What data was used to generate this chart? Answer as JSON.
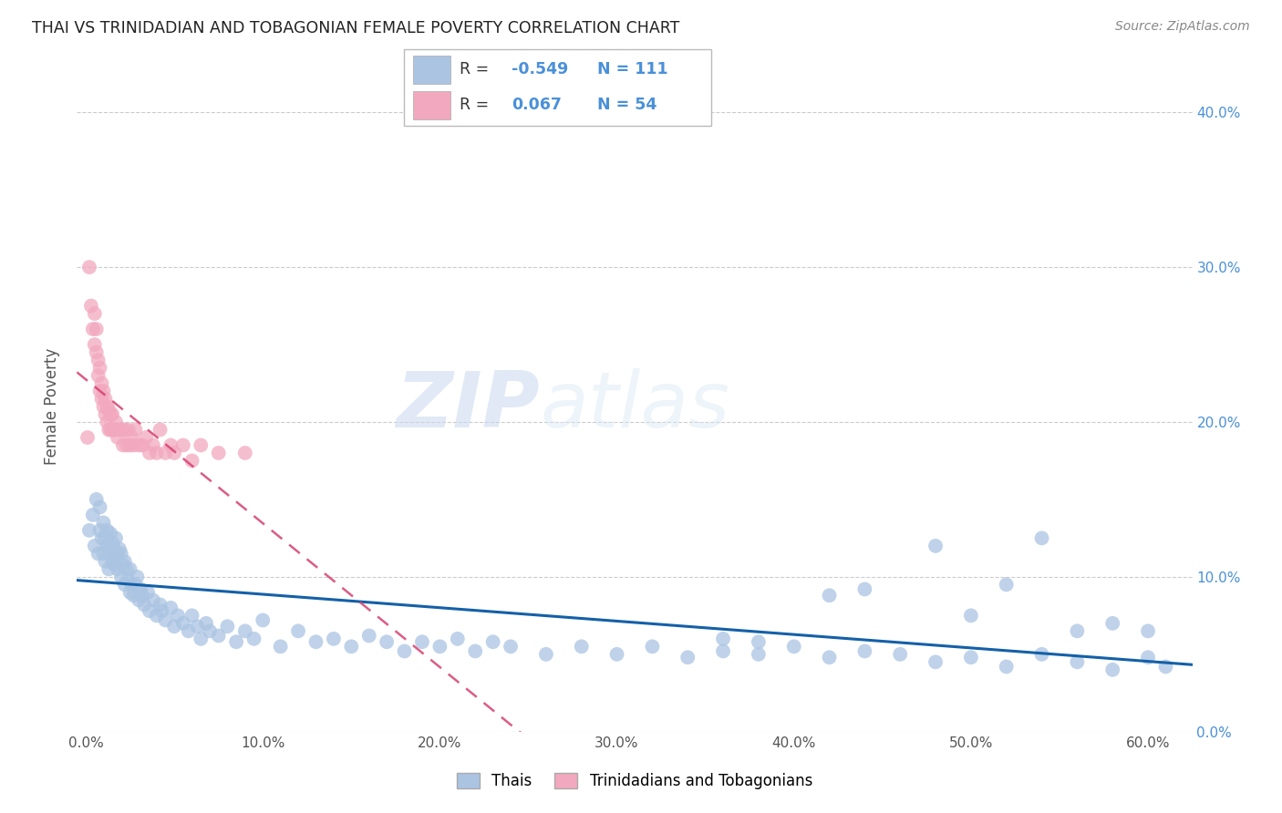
{
  "title": "THAI VS TRINIDADIAN AND TOBAGONIAN FEMALE POVERTY CORRELATION CHART",
  "source": "Source: ZipAtlas.com",
  "ylabel": "Female Poverty",
  "ylim": [
    0.0,
    0.42
  ],
  "xlim": [
    -0.005,
    0.625
  ],
  "blue_R": -0.549,
  "blue_N": 111,
  "pink_R": 0.067,
  "pink_N": 54,
  "blue_color": "#aac4e2",
  "pink_color": "#f2a8be",
  "blue_line_color": "#1460a8",
  "pink_line_color": "#d44070",
  "watermark_zip": "ZIP",
  "watermark_atlas": "atlas",
  "legend_label_blue": "Thais",
  "legend_label_pink": "Trinidadians and Tobagonians",
  "blue_points_x": [
    0.002,
    0.004,
    0.005,
    0.006,
    0.007,
    0.008,
    0.008,
    0.009,
    0.01,
    0.01,
    0.011,
    0.011,
    0.012,
    0.012,
    0.013,
    0.013,
    0.014,
    0.014,
    0.015,
    0.015,
    0.016,
    0.016,
    0.017,
    0.017,
    0.018,
    0.018,
    0.019,
    0.02,
    0.02,
    0.021,
    0.022,
    0.022,
    0.023,
    0.024,
    0.025,
    0.025,
    0.026,
    0.027,
    0.028,
    0.029,
    0.03,
    0.031,
    0.032,
    0.033,
    0.035,
    0.036,
    0.038,
    0.04,
    0.042,
    0.043,
    0.045,
    0.048,
    0.05,
    0.052,
    0.055,
    0.058,
    0.06,
    0.063,
    0.065,
    0.068,
    0.07,
    0.075,
    0.08,
    0.085,
    0.09,
    0.095,
    0.1,
    0.11,
    0.12,
    0.13,
    0.14,
    0.15,
    0.16,
    0.17,
    0.18,
    0.19,
    0.2,
    0.21,
    0.22,
    0.23,
    0.24,
    0.26,
    0.28,
    0.3,
    0.32,
    0.34,
    0.36,
    0.38,
    0.4,
    0.42,
    0.44,
    0.46,
    0.48,
    0.5,
    0.52,
    0.54,
    0.56,
    0.58,
    0.6,
    0.61,
    0.54,
    0.48,
    0.56,
    0.52,
    0.5,
    0.58,
    0.6,
    0.44,
    0.42,
    0.38,
    0.36
  ],
  "blue_points_y": [
    0.13,
    0.14,
    0.12,
    0.15,
    0.115,
    0.13,
    0.145,
    0.125,
    0.115,
    0.135,
    0.11,
    0.125,
    0.12,
    0.13,
    0.105,
    0.12,
    0.115,
    0.128,
    0.11,
    0.122,
    0.108,
    0.118,
    0.112,
    0.125,
    0.105,
    0.115,
    0.118,
    0.1,
    0.115,
    0.108,
    0.095,
    0.11,
    0.105,
    0.098,
    0.09,
    0.105,
    0.095,
    0.088,
    0.095,
    0.1,
    0.085,
    0.092,
    0.088,
    0.082,
    0.09,
    0.078,
    0.085,
    0.075,
    0.082,
    0.078,
    0.072,
    0.08,
    0.068,
    0.075,
    0.07,
    0.065,
    0.075,
    0.068,
    0.06,
    0.07,
    0.065,
    0.062,
    0.068,
    0.058,
    0.065,
    0.06,
    0.072,
    0.055,
    0.065,
    0.058,
    0.06,
    0.055,
    0.062,
    0.058,
    0.052,
    0.058,
    0.055,
    0.06,
    0.052,
    0.058,
    0.055,
    0.05,
    0.055,
    0.05,
    0.055,
    0.048,
    0.052,
    0.05,
    0.055,
    0.048,
    0.052,
    0.05,
    0.045,
    0.048,
    0.042,
    0.05,
    0.045,
    0.04,
    0.048,
    0.042,
    0.125,
    0.12,
    0.065,
    0.095,
    0.075,
    0.07,
    0.065,
    0.092,
    0.088,
    0.058,
    0.06
  ],
  "pink_points_x": [
    0.001,
    0.002,
    0.003,
    0.004,
    0.005,
    0.005,
    0.006,
    0.006,
    0.007,
    0.007,
    0.008,
    0.008,
    0.009,
    0.009,
    0.01,
    0.01,
    0.011,
    0.011,
    0.012,
    0.012,
    0.013,
    0.013,
    0.014,
    0.014,
    0.015,
    0.015,
    0.016,
    0.017,
    0.018,
    0.019,
    0.02,
    0.021,
    0.022,
    0.023,
    0.024,
    0.025,
    0.026,
    0.027,
    0.028,
    0.03,
    0.032,
    0.034,
    0.036,
    0.038,
    0.04,
    0.042,
    0.045,
    0.048,
    0.05,
    0.055,
    0.06,
    0.065,
    0.075,
    0.09
  ],
  "pink_points_y": [
    0.19,
    0.3,
    0.275,
    0.26,
    0.25,
    0.27,
    0.245,
    0.26,
    0.24,
    0.23,
    0.22,
    0.235,
    0.215,
    0.225,
    0.21,
    0.22,
    0.205,
    0.215,
    0.2,
    0.21,
    0.195,
    0.208,
    0.195,
    0.205,
    0.195,
    0.205,
    0.195,
    0.2,
    0.19,
    0.195,
    0.195,
    0.185,
    0.195,
    0.185,
    0.195,
    0.185,
    0.19,
    0.185,
    0.195,
    0.185,
    0.185,
    0.19,
    0.18,
    0.185,
    0.18,
    0.195,
    0.18,
    0.185,
    0.18,
    0.185,
    0.175,
    0.185,
    0.18,
    0.18
  ]
}
